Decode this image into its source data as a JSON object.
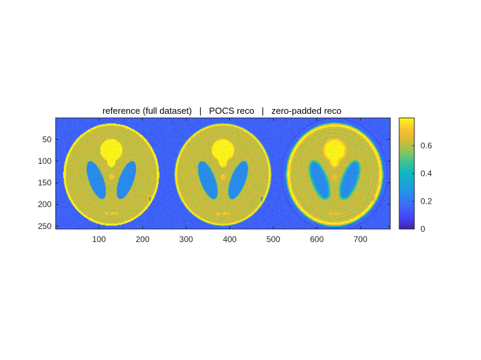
{
  "chart_data": {
    "type": "heatmap",
    "title": "reference (full dataset)   |   POCS reco   |   zero-padded reco",
    "xlabel": "",
    "ylabel": "",
    "xlim": [
      0.5,
      768.5
    ],
    "ylim": [
      0.5,
      256.5
    ],
    "x_ticks": [
      100,
      200,
      300,
      400,
      500,
      600,
      700
    ],
    "y_ticks": [
      50,
      100,
      150,
      200,
      250
    ],
    "colorbar": {
      "colormap": "parula",
      "range": [
        0,
        0.8
      ],
      "ticks": [
        0,
        0.2,
        0.4,
        0.6
      ]
    },
    "panels": [
      {
        "name": "reference (full dataset)",
        "x_range": [
          1,
          256
        ],
        "blur": 0,
        "noise": 0.05,
        "ringing": false
      },
      {
        "name": "POCS reco",
        "x_range": [
          257,
          512
        ],
        "blur": 0.4,
        "noise": 0.05,
        "ringing": false
      },
      {
        "name": "zero-padded reco",
        "x_range": [
          513,
          768
        ],
        "blur": 1.3,
        "noise": 0.05,
        "ringing": true
      }
    ],
    "phantom_intensities": {
      "background": 0.15,
      "skull_rim": 0.8,
      "brain": 0.62,
      "ventricles": 0.25,
      "upper_blob": 0.8,
      "small_spots": 0.72,
      "side_marker": 0.72
    }
  }
}
